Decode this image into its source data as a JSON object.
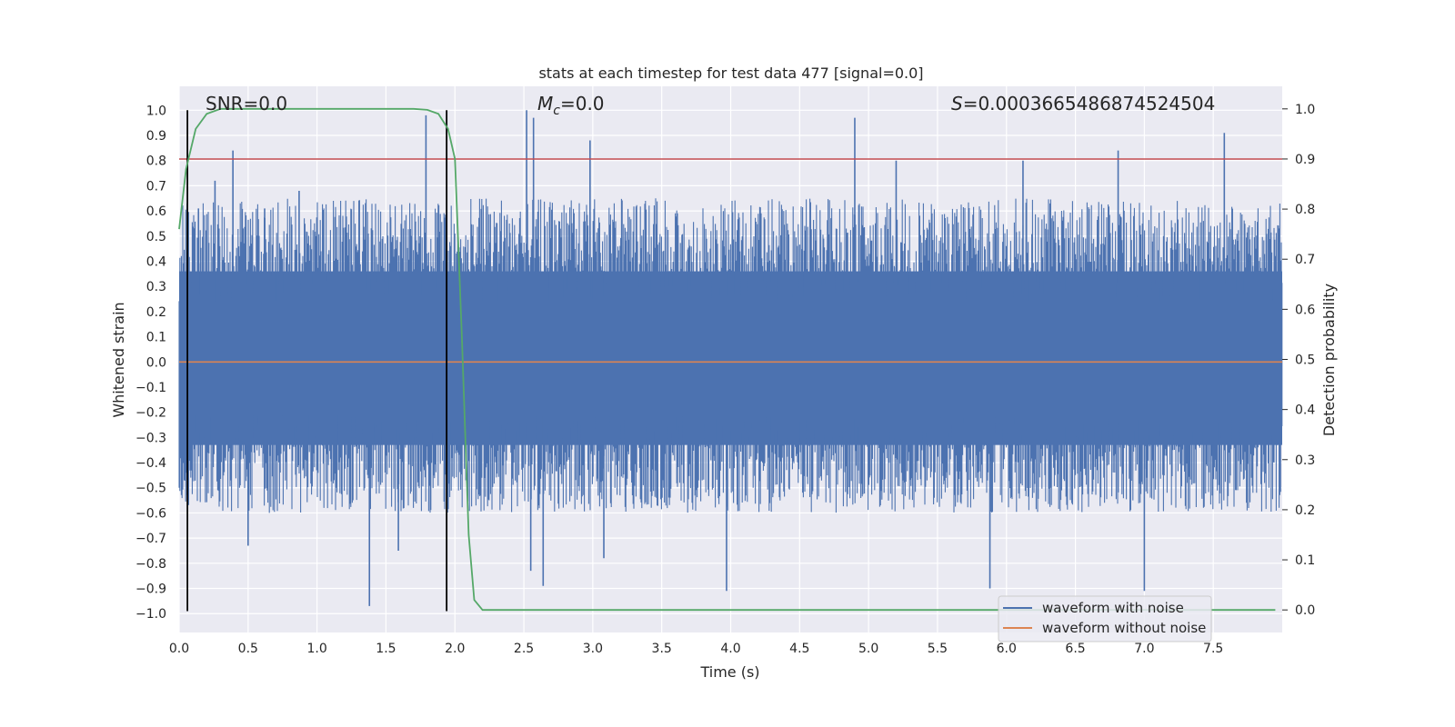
{
  "chart_data": {
    "type": "line",
    "title": "stats at each timestep for test data 477 [signal=0.0]",
    "xlabel": "Time (s)",
    "ylabel": "Whitened strain",
    "y2label": "Detection probability",
    "xlim": [
      0.0,
      8.0
    ],
    "ylim": [
      -1.075,
      1.095
    ],
    "y2lim": [
      -0.045,
      1.045
    ],
    "xticks": [
      0.0,
      0.5,
      1.0,
      1.5,
      2.0,
      2.5,
      3.0,
      3.5,
      4.0,
      4.5,
      5.0,
      5.5,
      6.0,
      6.5,
      7.0,
      7.5
    ],
    "xtick_labels": [
      "0.0",
      "0.5",
      "1.0",
      "1.5",
      "2.0",
      "2.5",
      "3.0",
      "3.5",
      "4.0",
      "4.5",
      "5.0",
      "5.5",
      "6.0",
      "6.5",
      "7.0",
      "7.5"
    ],
    "yticks": [
      1.0,
      0.9,
      0.8,
      0.7,
      0.6,
      0.5,
      0.4,
      0.3,
      0.2,
      0.1,
      0.0,
      -0.1,
      -0.2,
      -0.3,
      -0.4,
      -0.5,
      -0.6,
      -0.7,
      -0.8,
      -0.9,
      -1.0
    ],
    "ytick_labels": [
      "1.0",
      "0.9",
      "0.8",
      "0.7",
      "0.6",
      "0.5",
      "0.4",
      "0.3",
      "0.2",
      "0.1",
      "0.0",
      "−0.1",
      "−0.2",
      "−0.3",
      "−0.4",
      "−0.5",
      "−0.6",
      "−0.7",
      "−0.8",
      "−0.9",
      "−1.0"
    ],
    "y2ticks": [
      0.0,
      0.1,
      0.2,
      0.3,
      0.4,
      0.5,
      0.6,
      0.7,
      0.8,
      0.9,
      1.0
    ],
    "y2tick_labels": [
      "0.0",
      "0.1",
      "0.2",
      "0.3",
      "0.4",
      "0.5",
      "0.6",
      "0.7",
      "0.8",
      "0.9",
      "1.0"
    ],
    "annotations": {
      "snr": "SNR=0.0",
      "mc_symbol": "M",
      "mc_sub": "c",
      "mc_value": "=0.0",
      "s_symbol": "S",
      "s_value": "=0.0003665486874524504"
    },
    "series": [
      {
        "name": "waveform with noise",
        "color": "#4c72b0",
        "envelope": {
          "upper_typical": 0.45,
          "lower_typical": -0.37,
          "upper_range": [
            0.4,
            0.65
          ],
          "lower_range": [
            -0.35,
            -0.6
          ]
        },
        "spikes": [
          [
            0.06,
            0.63
          ],
          [
            0.14,
            0.61
          ],
          [
            0.26,
            0.72
          ],
          [
            0.39,
            0.84
          ],
          [
            0.5,
            -0.73
          ],
          [
            0.62,
            0.61
          ],
          [
            0.87,
            0.68
          ],
          [
            1.38,
            -0.97
          ],
          [
            1.59,
            -0.75
          ],
          [
            1.79,
            0.98
          ],
          [
            2.52,
            1.0
          ],
          [
            2.57,
            0.97
          ],
          [
            2.55,
            -0.83
          ],
          [
            2.64,
            -0.89
          ],
          [
            2.98,
            0.88
          ],
          [
            3.08,
            -0.78
          ],
          [
            3.97,
            -0.91
          ],
          [
            4.9,
            0.97
          ],
          [
            5.2,
            0.8
          ],
          [
            5.88,
            -0.9
          ],
          [
            6.12,
            0.8
          ],
          [
            6.81,
            0.84
          ],
          [
            7.0,
            -0.91
          ],
          [
            7.58,
            0.91
          ]
        ]
      },
      {
        "name": "waveform without noise",
        "color": "#dd8452",
        "constant": 0.0
      },
      {
        "name": "detection probability",
        "color": "#55a868",
        "axis": "right",
        "x": [
          0.0,
          0.05,
          0.12,
          0.2,
          0.3,
          0.4,
          1.5,
          1.7,
          1.8,
          1.88,
          1.95,
          2.0,
          2.05,
          2.1,
          2.14,
          2.2,
          7.95
        ],
        "y": [
          0.76,
          0.88,
          0.96,
          0.99,
          1.0,
          1.0,
          1.0,
          1.0,
          0.998,
          0.99,
          0.96,
          0.9,
          0.55,
          0.15,
          0.02,
          0.0,
          0.0
        ]
      }
    ],
    "threshold": {
      "value": 0.9,
      "axis": "right",
      "color": "#c44e52"
    },
    "vlines": [
      0.06,
      1.94
    ],
    "legend": {
      "placement": "lower-right",
      "entries": [
        "waveform with noise",
        "waveform without noise"
      ]
    },
    "grid": true
  }
}
